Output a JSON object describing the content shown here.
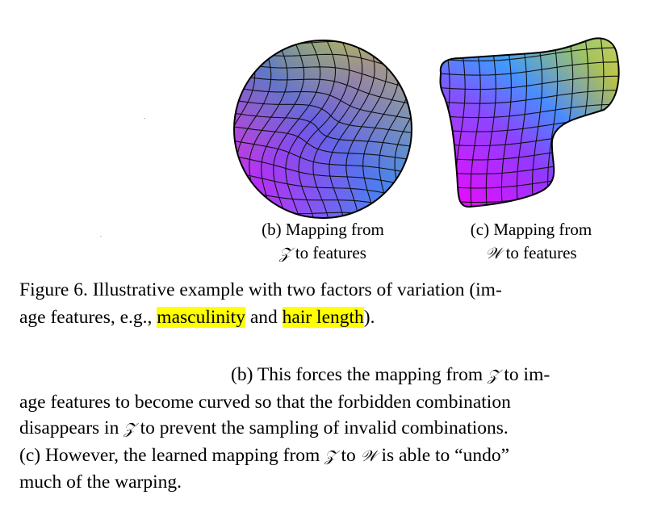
{
  "subfigures": {
    "b": {
      "caption_prefix": "(b) Mapping from",
      "symbol": "𝒵",
      "caption_suffix": "to features"
    },
    "c": {
      "caption_prefix": "(c) Mapping from",
      "symbol": "𝒲",
      "caption_suffix": "to features"
    }
  },
  "caption": {
    "label": "Figure 6.",
    "part1": "Illustrative example with two factors of variation (im-",
    "part2": "age features, e.g.,",
    "highlight1": "masculinity",
    "conj": "and",
    "highlight2": "hair length",
    "end": ").",
    "highlight_color": "#ffff00"
  },
  "body": {
    "line1_a": "(b) This forces the mapping from",
    "line1_sym": "𝒵",
    "line1_b": "to im-",
    "line2": "age features to become curved so that the forbidden combination",
    "line3_a": "disappears in",
    "line3_sym": "𝒵",
    "line3_b": "to prevent the sampling of invalid combinations.",
    "line4_a": "(c) However, the learned mapping from",
    "line4_sym1": "𝒵",
    "line4_mid": "to",
    "line4_sym2": "𝒲",
    "line4_b": "is able to “undo”",
    "line5": "much of the warping."
  },
  "colors": {
    "magenta": "#ff00ff",
    "blue": "#2f9bff",
    "yellow": "#ffff00",
    "grid": "#111111"
  }
}
